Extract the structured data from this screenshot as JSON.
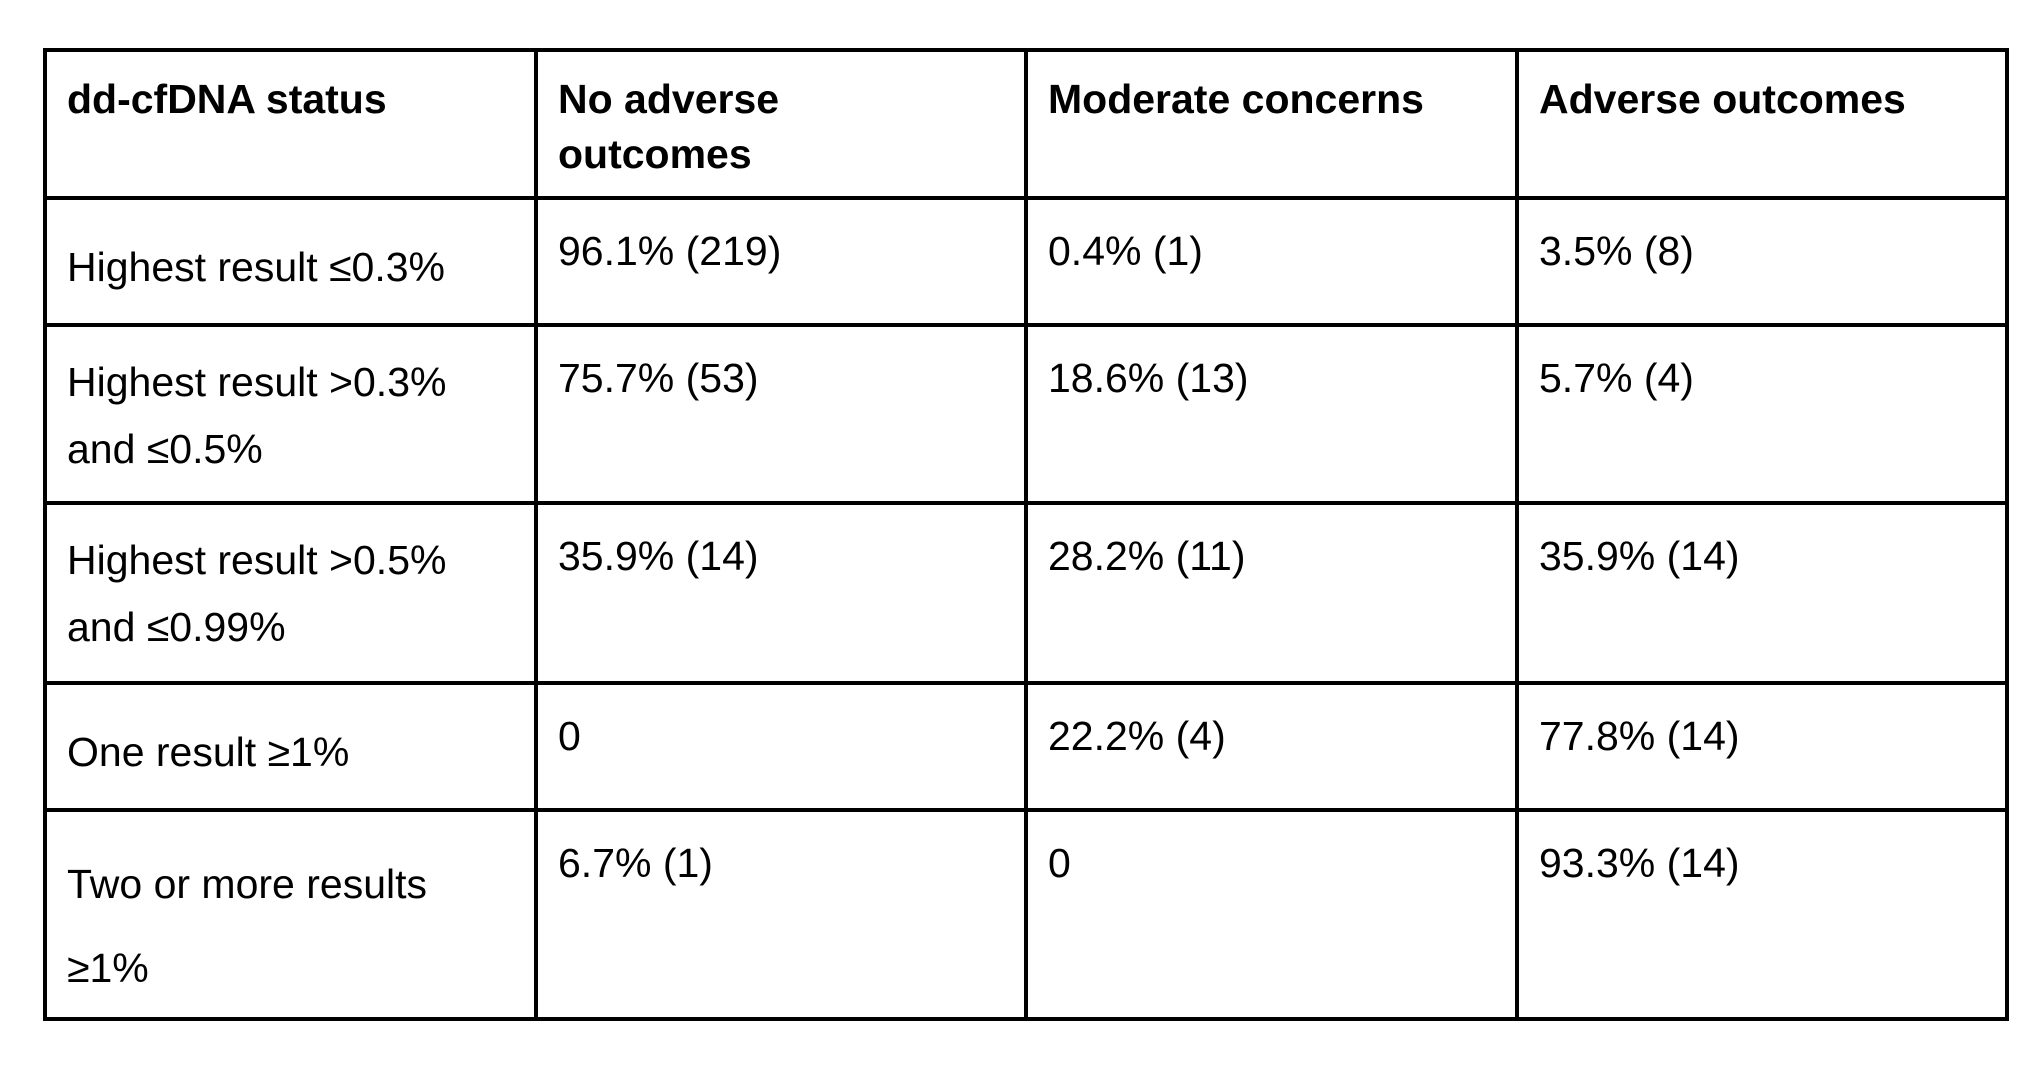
{
  "table": {
    "headers": [
      "dd-cfDNA status",
      "No adverse outcomes",
      "Moderate concerns",
      "Adverse outcomes"
    ],
    "rows": [
      [
        "Highest result ≤0.3%",
        "96.1% (219)",
        "0.4% (1)",
        "3.5% (8)"
      ],
      [
        "Highest result >0.3% and ≤0.5%",
        "75.7% (53)",
        "18.6% (13)",
        "5.7% (4)"
      ],
      [
        "Highest result >0.5% and ≤0.99%",
        "35.9% (14)",
        "28.2% (11)",
        "35.9% (14)"
      ],
      [
        "One result ≥1%",
        "0",
        "22.2% (4)",
        "77.8% (14)"
      ],
      [
        "Two or more results ≥1%",
        "6.7% (1)",
        "0",
        "93.3% (14)"
      ]
    ]
  }
}
